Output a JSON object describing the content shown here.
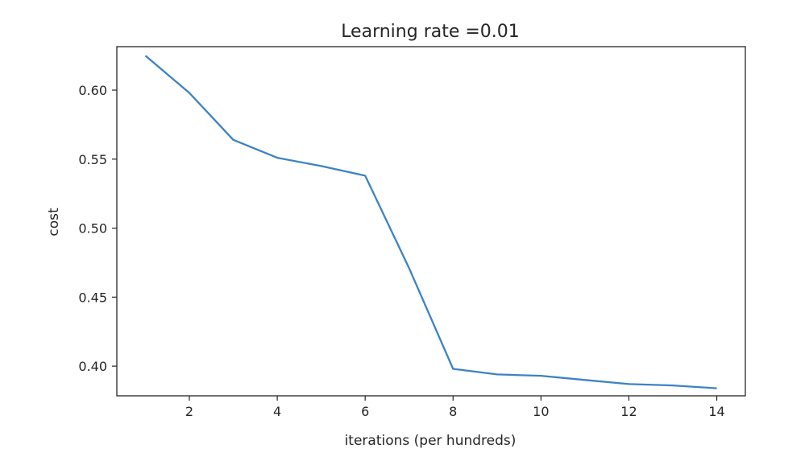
{
  "chart_data": {
    "type": "line",
    "title": "Learning rate =0.01",
    "xlabel": "iterations (per hundreds)",
    "ylabel": "cost",
    "xlim": [
      0.35,
      14.65
    ],
    "ylim": [
      0.3785,
      0.6315
    ],
    "x_ticks": [
      2,
      4,
      6,
      8,
      10,
      12,
      14
    ],
    "x_tick_labels": [
      "2",
      "4",
      "6",
      "8",
      "10",
      "12",
      "14"
    ],
    "y_ticks": [
      0.4,
      0.45,
      0.5,
      0.55,
      0.6
    ],
    "y_tick_labels": [
      "0.40",
      "0.45",
      "0.50",
      "0.55",
      "0.60"
    ],
    "grid": false,
    "series": [
      {
        "color": "#3b83c4",
        "x": [
          1,
          2,
          3,
          4,
          5,
          6,
          7,
          8,
          9,
          10,
          11,
          12,
          13,
          14
        ],
        "y": [
          0.625,
          0.598,
          0.564,
          0.551,
          0.545,
          0.538,
          0.471,
          0.398,
          0.394,
          0.393,
          0.39,
          0.387,
          0.386,
          0.384
        ]
      }
    ]
  }
}
